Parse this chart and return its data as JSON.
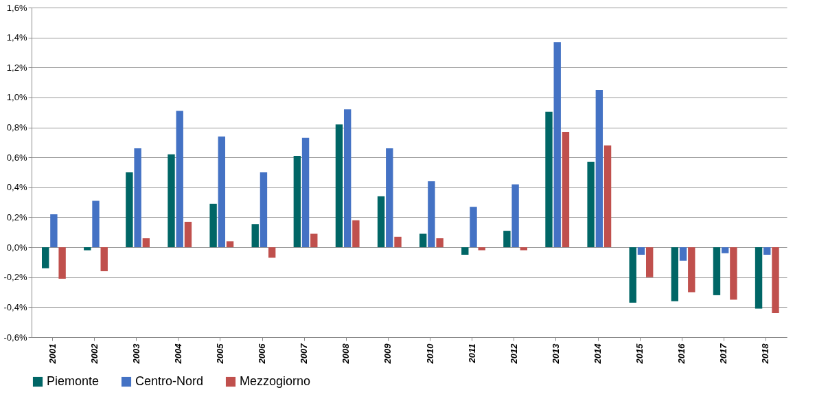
{
  "chart_data": {
    "type": "bar",
    "categories": [
      "2001",
      "2002",
      "2003",
      "2004",
      "2005",
      "2006",
      "2007",
      "2008",
      "2009",
      "2010",
      "2011",
      "2012",
      "2013",
      "2014",
      "2015",
      "2016",
      "2017",
      "2018"
    ],
    "series": [
      {
        "name": "Piemonte",
        "color": "#006666",
        "values": [
          -0.14,
          -0.02,
          0.5,
          0.62,
          0.29,
          0.155,
          0.61,
          0.82,
          0.34,
          0.09,
          -0.05,
          0.11,
          0.905,
          0.57,
          -0.37,
          -0.36,
          -0.32,
          -0.41
        ]
      },
      {
        "name": "Centro-Nord",
        "color": "#4472c4",
        "values": [
          0.22,
          0.31,
          0.66,
          0.91,
          0.74,
          0.5,
          0.73,
          0.92,
          0.66,
          0.44,
          0.27,
          0.42,
          1.37,
          1.05,
          -0.05,
          -0.09,
          -0.04,
          -0.05
        ]
      },
      {
        "name": "Mezzogiorno",
        "color": "#c0504d",
        "values": [
          -0.21,
          -0.16,
          0.06,
          0.17,
          0.04,
          -0.07,
          0.09,
          0.18,
          0.07,
          0.06,
          -0.02,
          -0.02,
          0.77,
          0.68,
          -0.2,
          -0.3,
          -0.35,
          -0.44
        ]
      }
    ],
    "ylim": [
      -0.6,
      1.6
    ],
    "yticks": [
      {
        "value": -0.6,
        "label": "-0,6%"
      },
      {
        "value": -0.4,
        "label": "-0,4%"
      },
      {
        "value": -0.2,
        "label": "-0,2%"
      },
      {
        "value": 0,
        "label": "0,0%"
      },
      {
        "value": 0.2,
        "label": "0,2%"
      },
      {
        "value": 0.4,
        "label": "0,4%"
      },
      {
        "value": 0.6,
        "label": "0,6%"
      },
      {
        "value": 0.8,
        "label": "0,8%"
      },
      {
        "value": 1.0,
        "label": "1,0%"
      },
      {
        "value": 1.2,
        "label": "1,2%"
      },
      {
        "value": 1.4,
        "label": "1,4%"
      },
      {
        "value": 1.6,
        "label": "1,6%"
      }
    ],
    "grid": "y",
    "legend": "bottom"
  }
}
